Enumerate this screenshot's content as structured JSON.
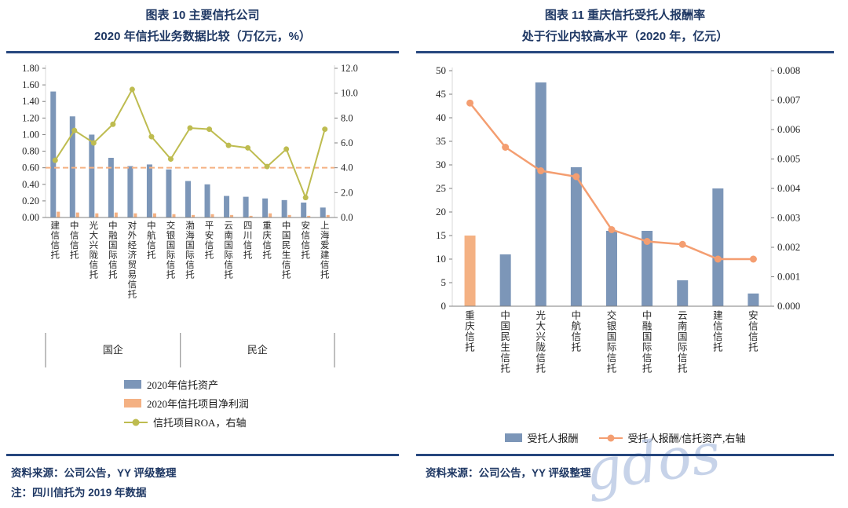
{
  "watermark": "gdos",
  "colors": {
    "navy": "#1F3864",
    "rule": "#26477E",
    "axis_line": "#7F7F7F",
    "watermark_color": "#B5C5E2"
  },
  "footer": {
    "left_source": "资料来源：公司公告，YY 评级整理",
    "left_note": "注：四川信托为 2019 年数据",
    "right_source": "资料来源：公司公告，YY 评级整理"
  },
  "chart_data": [
    {
      "type": "bar",
      "title_line1": "图表 10 主要信托公司",
      "title_line2": "2020 年信托业务数据比较（万亿元，%）",
      "categories": [
        "建信信托",
        "中信信托",
        "光大兴陇信托",
        "中融国际信托",
        "对外经济贸易信托",
        "中航信托",
        "交银国际信托",
        "渤海国际信托",
        "平安信托",
        "云南国际信托",
        "四川信托",
        "重庆信托",
        "中国民生信托",
        "安信信托",
        "上海爱建信托"
      ],
      "groups": [
        {
          "label": "国企",
          "span": 7
        },
        {
          "label": "民企",
          "span": 8
        }
      ],
      "series": [
        {
          "name": "2020年信托资产",
          "type": "bar",
          "axis": "left",
          "color": "#7C96B8",
          "values": [
            1.52,
            1.22,
            1.0,
            0.72,
            0.62,
            0.64,
            0.58,
            0.44,
            0.4,
            0.26,
            0.25,
            0.23,
            0.21,
            0.18,
            0.12
          ]
        },
        {
          "name": "2020年信托项目净利润",
          "type": "bar",
          "axis": "left",
          "color": "#F4B183",
          "values": [
            0.07,
            0.06,
            0.05,
            0.06,
            0.05,
            0.05,
            0.04,
            0.03,
            0.04,
            0.03,
            0.02,
            0.05,
            0.03,
            0.02,
            0.03
          ]
        },
        {
          "name": "信托项目ROA，右轴",
          "type": "line",
          "axis": "right",
          "color": "#BEBC50",
          "values": [
            4.6,
            7.0,
            6.0,
            7.5,
            10.3,
            6.5,
            4.7,
            7.2,
            7.1,
            5.8,
            5.6,
            4.1,
            5.5,
            1.6,
            7.1
          ]
        }
      ],
      "reference_line": {
        "axis": "left",
        "value": 0.6,
        "color": "#F5B183"
      },
      "left_axis": {
        "min": 0,
        "max": 1.8,
        "step": 0.2,
        "decimals": 2
      },
      "right_axis": {
        "min": 0,
        "max": 12,
        "step": 2,
        "decimals": 1
      },
      "grid": false,
      "legend_position": "bottom-left"
    },
    {
      "type": "bar",
      "title_line1": "图表 11 重庆信托受托人报酬率",
      "title_line2": "处于行业内较高水平（2020 年，亿元）",
      "categories": [
        "重庆信托",
        "中国民生信托",
        "光大兴陇信托",
        "中航信托",
        "交银国际信托",
        "中融国际信托",
        "云南国际信托",
        "建信信托",
        "安信信托"
      ],
      "series": [
        {
          "name": "受托人报酬",
          "type": "bar",
          "axis": "left",
          "color": "#7C96B8",
          "highlight_first": true,
          "highlight_color": "#F4B183",
          "values": [
            15,
            11,
            47.5,
            29.5,
            16,
            16,
            5.5,
            25,
            2.7
          ]
        },
        {
          "name": "受托人报酬/信托资产,右轴",
          "type": "line",
          "axis": "right",
          "color": "#F49E71",
          "values": [
            0.0069,
            0.0054,
            0.0046,
            0.0044,
            0.0026,
            0.0022,
            0.0021,
            0.0016,
            0.0016
          ]
        }
      ],
      "left_axis": {
        "min": 0,
        "max": 50,
        "step": 5,
        "decimals": 0
      },
      "right_axis": {
        "min": 0,
        "max": 0.008,
        "step": 0.001,
        "decimals": 3
      },
      "grid": false,
      "legend_position": "bottom-center"
    }
  ]
}
